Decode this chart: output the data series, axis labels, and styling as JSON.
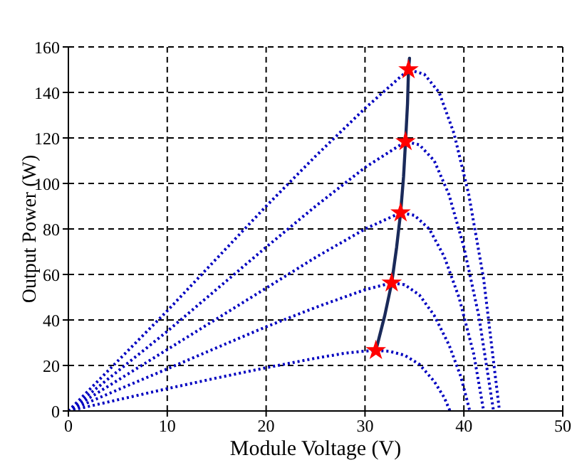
{
  "chart_data": {
    "type": "line",
    "xlabel": "Module Voltage (V)",
    "ylabel": "Output Power (W)",
    "xlim": [
      0,
      50
    ],
    "xticks": [
      0,
      10,
      20,
      30,
      40,
      50
    ],
    "ylim": [
      0,
      160
    ],
    "yticks": [
      0,
      20,
      40,
      60,
      80,
      100,
      120,
      140,
      160
    ],
    "grid": true,
    "series": [
      {
        "color": "#0000c0",
        "line_style": "dotted",
        "marker": "none",
        "x": [
          0,
          5,
          10,
          15,
          20,
          25,
          28,
          30,
          31.1,
          32.5,
          34,
          35.5,
          37,
          38,
          38.6
        ],
        "values": [
          0,
          4.9,
          9.8,
          14.5,
          19,
          23.2,
          25.4,
          26.3,
          26.6,
          26.2,
          24.5,
          20.5,
          13,
          6,
          0
        ]
      },
      {
        "color": "#0000c0",
        "line_style": "dotted",
        "marker": "none",
        "x": [
          0,
          5,
          10,
          15,
          20,
          25,
          30,
          32.7,
          34,
          35.5,
          37,
          38.5,
          39.7,
          40.6
        ],
        "values": [
          0,
          9.3,
          18.5,
          27.8,
          37,
          45.5,
          53.3,
          56.3,
          55.5,
          51,
          42,
          29,
          15,
          0
        ]
      },
      {
        "color": "#0000c0",
        "line_style": "dotted",
        "marker": "none",
        "x": [
          0,
          5,
          10,
          15,
          20,
          25,
          30,
          33.6,
          35,
          36.5,
          38,
          39.5,
          41,
          42
        ],
        "values": [
          0,
          13.5,
          27,
          40.5,
          54,
          67.5,
          80,
          87.1,
          86,
          80,
          68,
          50,
          25,
          0
        ]
      },
      {
        "color": "#0000c0",
        "line_style": "dotted",
        "marker": "none",
        "x": [
          0,
          5,
          10,
          15,
          20,
          25,
          30,
          34.1,
          35.5,
          37,
          38.5,
          40,
          41.5,
          43
        ],
        "values": [
          0,
          17.5,
          35,
          53.5,
          72,
          90,
          107,
          118.4,
          117,
          110,
          95,
          72,
          42,
          0
        ]
      },
      {
        "color": "#0000c0",
        "line_style": "dotted",
        "marker": "none",
        "x": [
          0,
          5,
          10,
          15,
          20,
          25,
          30,
          34.4,
          36,
          37.5,
          39,
          40.5,
          42,
          43.6
        ],
        "values": [
          0,
          22,
          44,
          67,
          90,
          112,
          133,
          150,
          148,
          140,
          122,
          95,
          58,
          0
        ]
      },
      {
        "color": "#1a2a5a",
        "line_style": "solid",
        "marker": "none",
        "x": [
          31.1,
          32,
          32.7,
          33.2,
          33.6,
          33.9,
          34.1,
          34.3,
          34.4,
          34.5
        ],
        "values": [
          26.6,
          42,
          56.3,
          72,
          87.1,
          103,
          118.4,
          135,
          150,
          155
        ]
      },
      {
        "type": "scatter",
        "color": "#ff0000",
        "marker": "star",
        "x": [
          31.1,
          32.7,
          33.6,
          34.1,
          34.4
        ],
        "values": [
          26.6,
          56.3,
          87.1,
          118.4,
          150
        ]
      }
    ]
  }
}
